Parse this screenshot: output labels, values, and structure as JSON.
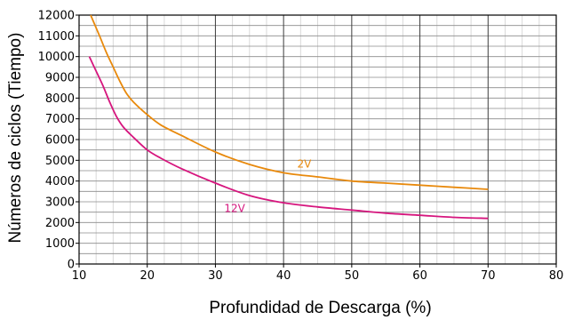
{
  "chart_data": {
    "type": "line",
    "title": "",
    "xlabel": "Profundidad de Descarga (%)",
    "ylabel": "Números de ciclos (Tiempo)",
    "xlim": [
      10,
      80
    ],
    "ylim": [
      0,
      12000
    ],
    "x_ticks": [
      10,
      20,
      30,
      40,
      50,
      60,
      70,
      80
    ],
    "y_ticks": [
      0,
      1000,
      2000,
      3000,
      4000,
      5000,
      6000,
      7000,
      8000,
      9000,
      10000,
      11000,
      12000
    ],
    "x_ticks_label": [
      "10",
      "20",
      "30",
      "40",
      "50",
      "60",
      "70",
      "80"
    ],
    "y_ticks_label": [
      "0",
      "1000",
      "2000",
      "3000",
      "4000",
      "5000",
      "6000",
      "7000",
      "8000",
      "9000",
      "10000",
      "11000",
      "12000"
    ],
    "grid": true,
    "legend": "none",
    "series": [
      {
        "name": "2V",
        "color": "#e8890c",
        "x": [
          11.7,
          13,
          14,
          15,
          16,
          17,
          18,
          20,
          22,
          25,
          30,
          35,
          40,
          45,
          50,
          55,
          60,
          65,
          70
        ],
        "y": [
          12000,
          11000,
          10200,
          9500,
          8800,
          8200,
          7800,
          7200,
          6700,
          6200,
          5400,
          4800,
          4400,
          4200,
          4000,
          3900,
          3800,
          3700,
          3600
        ]
      },
      {
        "name": "12V",
        "color": "#d6167e",
        "x": [
          11.5,
          12.5,
          13.5,
          14.5,
          15.5,
          16.5,
          18,
          20,
          22,
          25,
          30,
          35,
          40,
          45,
          50,
          55,
          60,
          65,
          70
        ],
        "y": [
          10000,
          9300,
          8600,
          7800,
          7100,
          6600,
          6100,
          5500,
          5100,
          4600,
          3900,
          3300,
          2950,
          2750,
          2600,
          2450,
          2350,
          2250,
          2200
        ]
      }
    ],
    "annotations": [
      {
        "text": "2V",
        "x": 42,
        "y": 4650,
        "color": "#e8890c"
      },
      {
        "text": "12V",
        "x": 31.3,
        "y": 2500,
        "color": "#d6167e"
      }
    ]
  }
}
